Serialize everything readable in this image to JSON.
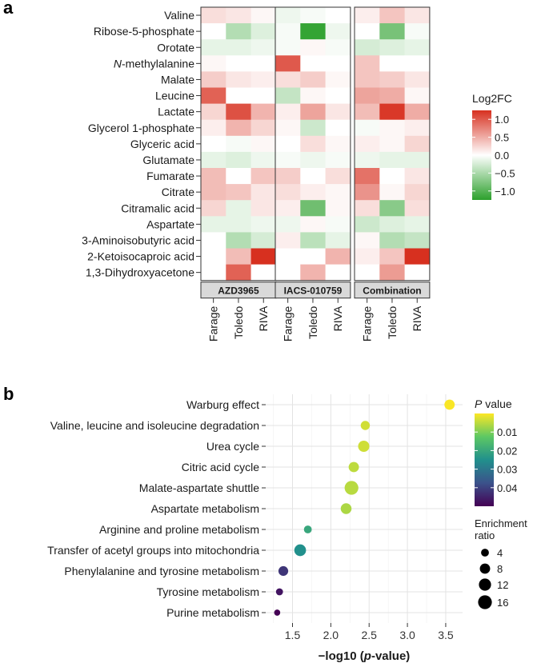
{
  "panels": {
    "a_letter": "a",
    "b_letter": "b"
  },
  "chart_data": [
    {
      "type": "heatmap",
      "legend_title": "Log2FC",
      "legend_ticks": [
        1.0,
        0.5,
        0.0,
        -0.5,
        -1.0
      ],
      "legend_tick_labels": [
        "1.0",
        "0.5",
        "0.0",
        "−0.5",
        "−1.0"
      ],
      "color_scale": {
        "min": -1.25,
        "max": 1.25,
        "low_color": "#2ca02c",
        "mid_color": "#ffffff",
        "high_color": "#d7301f"
      },
      "facets": [
        "AZD3965",
        "IACS-010759",
        "Combination"
      ],
      "columns": [
        "Farage",
        "Toledo",
        "RIVA"
      ],
      "rows": [
        "Valine",
        "Ribose-5-phosphate",
        "Orotate",
        "N-methylalanine",
        "Malate",
        "Leucine",
        "Lactate",
        "Glycerol 1-phosphate",
        "Glyceric acid",
        "Glutamate",
        "Fumarate",
        "Citrate",
        "Citramalic acid",
        "Aspartate",
        "3-Aminoisobutyric acid",
        "2-Ketoisocaproic acid",
        "1,3-Dihydroxyacetone"
      ],
      "row_prefix_italic": {
        "N-methylalanine": "N"
      },
      "values": {
        "AZD3965": [
          [
            0.2,
            0.15,
            0.05
          ],
          [
            0.0,
            -0.45,
            -0.2
          ],
          [
            -0.15,
            -0.15,
            -0.1
          ],
          [
            0.05,
            0.0,
            0.0
          ],
          [
            0.3,
            0.15,
            0.1
          ],
          [
            0.95,
            0.0,
            0.0
          ],
          [
            0.25,
            1.05,
            0.45
          ],
          [
            0.1,
            0.45,
            0.25
          ],
          [
            0.0,
            -0.05,
            0.05
          ],
          [
            -0.15,
            -0.2,
            -0.1
          ],
          [
            0.4,
            0.0,
            0.35
          ],
          [
            0.4,
            0.35,
            0.15
          ],
          [
            0.25,
            -0.15,
            0.15
          ],
          [
            -0.15,
            -0.15,
            -0.1
          ],
          [
            0.0,
            -0.45,
            -0.25
          ],
          [
            0.0,
            0.4,
            1.35
          ],
          [
            0.0,
            0.95,
            0.0
          ]
        ],
        "IACS-010759": [
          [
            -0.1,
            -0.05,
            0.0
          ],
          [
            -0.05,
            -1.2,
            -0.1
          ],
          [
            -0.05,
            0.05,
            -0.05
          ],
          [
            1.0,
            0.0,
            0.0
          ],
          [
            0.2,
            0.3,
            0.05
          ],
          [
            -0.35,
            0.05,
            0.0
          ],
          [
            0.1,
            0.55,
            0.15
          ],
          [
            0.05,
            -0.3,
            0.0
          ],
          [
            0.0,
            0.2,
            0.05
          ],
          [
            -0.05,
            -0.1,
            -0.05
          ],
          [
            0.3,
            0.0,
            0.2
          ],
          [
            0.2,
            0.1,
            0.05
          ],
          [
            0.1,
            -0.85,
            0.05
          ],
          [
            -0.1,
            0.05,
            -0.05
          ],
          [
            0.1,
            -0.4,
            -0.15
          ],
          [
            0.0,
            0.0,
            0.45
          ],
          [
            0.0,
            0.45,
            0.0
          ]
        ],
        "Combination": [
          [
            0.1,
            0.35,
            0.15
          ],
          [
            0.0,
            -0.8,
            -0.05
          ],
          [
            -0.25,
            -0.2,
            -0.15
          ],
          [
            0.35,
            0.0,
            0.0
          ],
          [
            0.35,
            0.3,
            0.15
          ],
          [
            0.55,
            0.5,
            0.05
          ],
          [
            0.4,
            1.2,
            0.5
          ],
          [
            -0.05,
            0.05,
            0.1
          ],
          [
            0.1,
            0.05,
            0.25
          ],
          [
            -0.1,
            -0.15,
            -0.15
          ],
          [
            0.85,
            0.0,
            0.15
          ],
          [
            0.65,
            0.05,
            0.25
          ],
          [
            0.2,
            -0.7,
            0.2
          ],
          [
            -0.3,
            -0.2,
            -0.15
          ],
          [
            0.05,
            -0.45,
            -0.35
          ],
          [
            0.1,
            0.35,
            1.35
          ],
          [
            0.0,
            0.6,
            0.0
          ]
        ]
      }
    },
    {
      "type": "scatter",
      "categories": [
        "Warburg effect",
        "Valine, leucine and isoleucine degradation",
        "Urea cycle",
        "Citric acid cycle",
        "Malate-aspartate shuttle",
        "Aspartate metabolism",
        "Arginine and proline metabolism",
        "Transfer of acetyl groups into mitochondria",
        "Phenylalanine and tyrosine metabolism",
        "Tyrosine metabolism",
        "Purine metabolism"
      ],
      "x": [
        3.55,
        2.45,
        2.43,
        2.3,
        2.27,
        2.2,
        1.7,
        1.6,
        1.38,
        1.33,
        1.3
      ],
      "p_value": [
        0.0003,
        0.0035,
        0.0037,
        0.005,
        0.0054,
        0.0063,
        0.02,
        0.025,
        0.042,
        0.047,
        0.05
      ],
      "enrichment_ratio": [
        8,
        6,
        10,
        8,
        16,
        9,
        4,
        11,
        7,
        3,
        2
      ],
      "xlabel_prefix": "−log10 (",
      "xlabel_italic": "p",
      "xlabel_suffix": "-value)",
      "xlim": [
        1.15,
        3.72
      ],
      "xticks": [
        1.5,
        2.0,
        2.5,
        3.0,
        3.5
      ],
      "xtick_labels": [
        "1.5",
        "2.0",
        "2.5",
        "3.0",
        "3.5"
      ],
      "grid": true,
      "color_legend": {
        "title_italic": "P",
        "title_rest": " value",
        "ticks": [
          0.01,
          0.02,
          0.03,
          0.04
        ],
        "tick_labels": [
          "0.01",
          "0.02",
          "0.03",
          "0.04"
        ],
        "range": [
          0.0,
          0.05
        ]
      },
      "size_legend": {
        "title_line1": "Enrichment",
        "title_line2": "ratio",
        "values": [
          4,
          8,
          12,
          16
        ],
        "labels": [
          "4",
          "8",
          "12",
          "16"
        ]
      }
    }
  ]
}
